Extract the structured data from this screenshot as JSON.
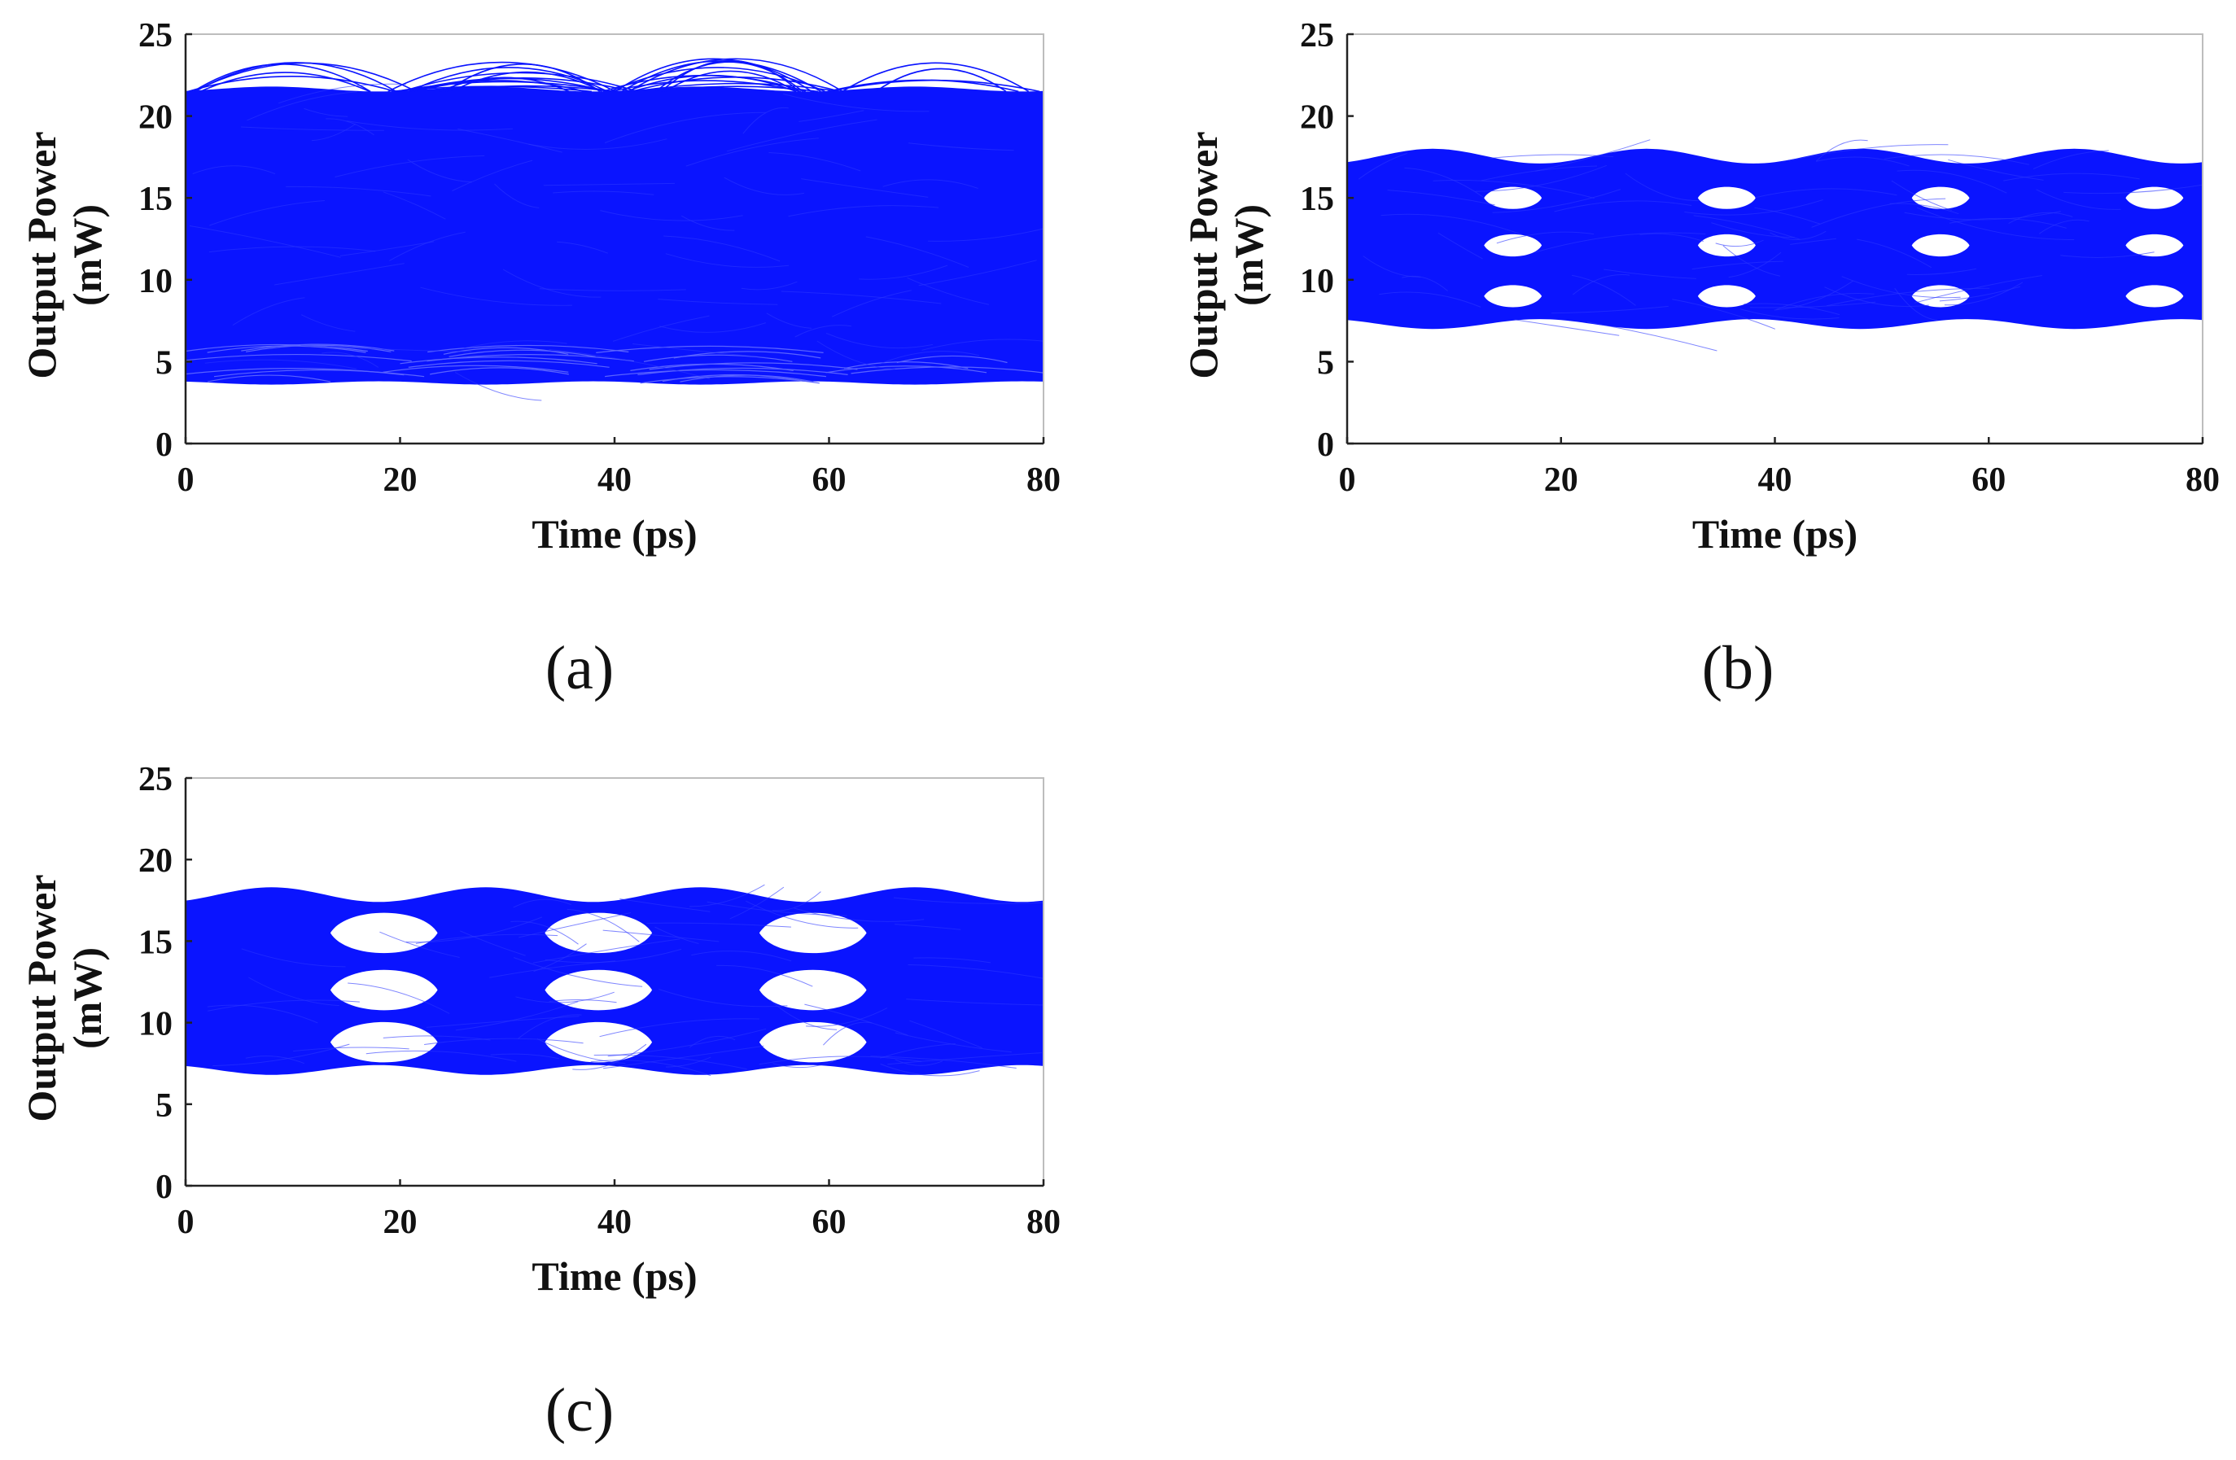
{
  "colors": {
    "trace": "#0a14ff",
    "eye": "#ffffff",
    "frame": "#bdbdbd",
    "axis": "#222222"
  },
  "chart_data": [
    {
      "type": "line",
      "panel": "a",
      "caption": "(a)",
      "xlabel": "Time (ps)",
      "ylabel_line1": "Output Power",
      "ylabel_line2": "(mW)",
      "xlim": [
        0,
        80
      ],
      "ylim": [
        0,
        25
      ],
      "xticks": [
        0,
        20,
        40,
        60,
        80
      ],
      "yticks": [
        0,
        5,
        10,
        15,
        20,
        25
      ],
      "x_tick_labels": [
        "0",
        "20",
        "40",
        "60",
        "80"
      ],
      "y_tick_labels": [
        "0",
        "5",
        "10",
        "15",
        "20",
        "25"
      ],
      "description_data": {
        "band_min": 3.6,
        "band_max": 21.8,
        "overshoot_max": 23.5,
        "symbol_period_ps": 20,
        "levels": 4,
        "eye_openings": []
      }
    },
    {
      "type": "line",
      "panel": "b",
      "caption": "(b)",
      "xlabel": "Time (ps)",
      "ylabel_line1": "Output Power",
      "ylabel_line2": "(mW)",
      "xlim": [
        0,
        80
      ],
      "ylim": [
        0,
        25
      ],
      "xticks": [
        0,
        20,
        40,
        60,
        80
      ],
      "yticks": [
        0,
        5,
        10,
        15,
        20,
        25
      ],
      "x_tick_labels": [
        "0",
        "20",
        "40",
        "60",
        "80"
      ],
      "y_tick_labels": [
        "0",
        "5",
        "10",
        "15",
        "20",
        "25"
      ],
      "description_data": {
        "band_min": 7.0,
        "band_max": 18.0,
        "symbol_period_ps": 20,
        "levels": 4,
        "eye_centers_ps": [
          15.5,
          35.5,
          55.5,
          75.5
        ],
        "eye_levels_mW": [
          9.0,
          12.1,
          15.0
        ],
        "eye_halfwidth_ps": 2.7,
        "eye_halfheight_mW": 0.6
      }
    },
    {
      "type": "line",
      "panel": "c",
      "caption": "(c)",
      "xlabel": "Time (ps)",
      "ylabel_line1": "Output Power",
      "ylabel_line2": "(mW)",
      "xlim": [
        0,
        80
      ],
      "ylim": [
        0,
        25
      ],
      "xticks": [
        0,
        20,
        40,
        60,
        80
      ],
      "yticks": [
        0,
        5,
        10,
        15,
        20,
        25
      ],
      "x_tick_labels": [
        "0",
        "20",
        "40",
        "60",
        "80"
      ],
      "y_tick_labels": [
        "0",
        "5",
        "10",
        "15",
        "20",
        "25"
      ],
      "description_data": {
        "band_min": 6.8,
        "band_max": 18.3,
        "symbol_period_ps": 20,
        "levels": 4,
        "eye_centers_ps": [
          18.5,
          38.5,
          58.5
        ],
        "eye_levels_mW": [
          8.8,
          12.0,
          15.5
        ],
        "eye_halfwidth_ps": 5.0,
        "eye_halfheight_mW": 1.1
      }
    }
  ]
}
